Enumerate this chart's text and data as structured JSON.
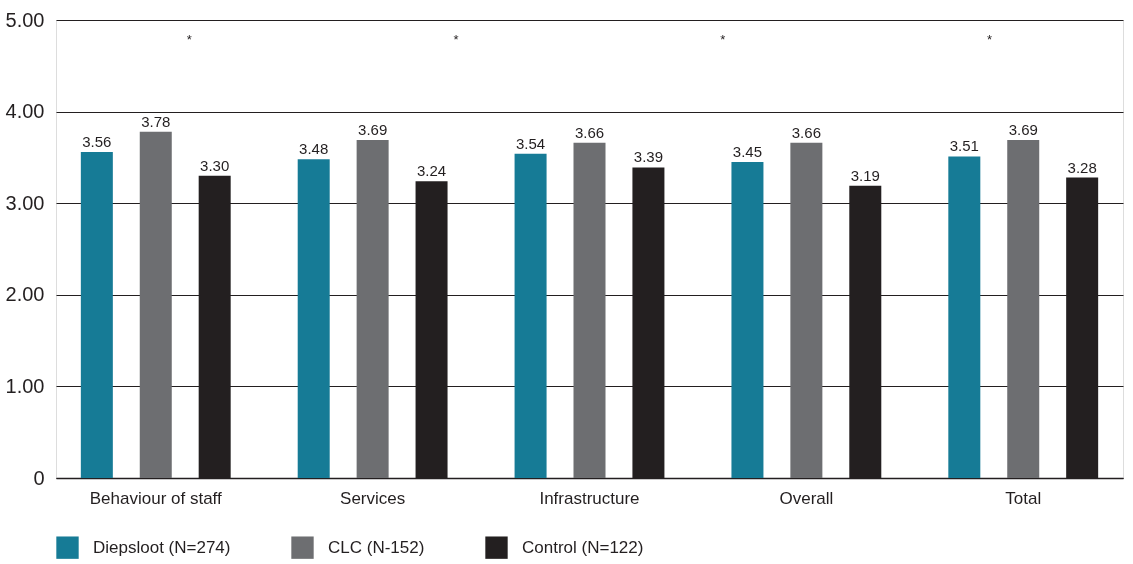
{
  "chart_data": {
    "type": "bar",
    "categories": [
      "Behaviour of staff",
      "Services",
      "Infrastructure",
      "Overall",
      "Total"
    ],
    "series": [
      {
        "name": "Diepsloot (N=274)",
        "color": "#167b96",
        "values": [
          3.56,
          3.48,
          3.54,
          3.45,
          3.51
        ],
        "value_labels": [
          "3.56",
          "3.48",
          "3.54",
          "3.45",
          "3.51"
        ]
      },
      {
        "name": "CLC (N-152)",
        "color": "#6d6e71",
        "values": [
          3.78,
          3.69,
          3.66,
          3.66,
          3.69
        ],
        "value_labels": [
          "3.78",
          "3.69",
          "3.66",
          "3.66",
          "3.69"
        ]
      },
      {
        "name": "Control (N=122)",
        "color": "#231f20",
        "values": [
          3.3,
          3.24,
          3.39,
          3.19,
          3.28
        ],
        "value_labels": [
          "3.30",
          "3.24",
          "3.39",
          "3.19",
          "3.28"
        ]
      }
    ],
    "ylim": [
      0,
      5
    ],
    "yticks": [
      0,
      {
        "value": 1,
        "label": "1.00"
      },
      {
        "value": 2,
        "label": "2.00"
      },
      {
        "value": 3,
        "label": "3.00"
      },
      {
        "value": 4,
        "label": "4.00"
      },
      {
        "value": 5,
        "label": "5.00"
      }
    ],
    "grid": "y",
    "legend": "bottom",
    "annotations": [
      "*",
      "*",
      "*",
      "*"
    ]
  }
}
